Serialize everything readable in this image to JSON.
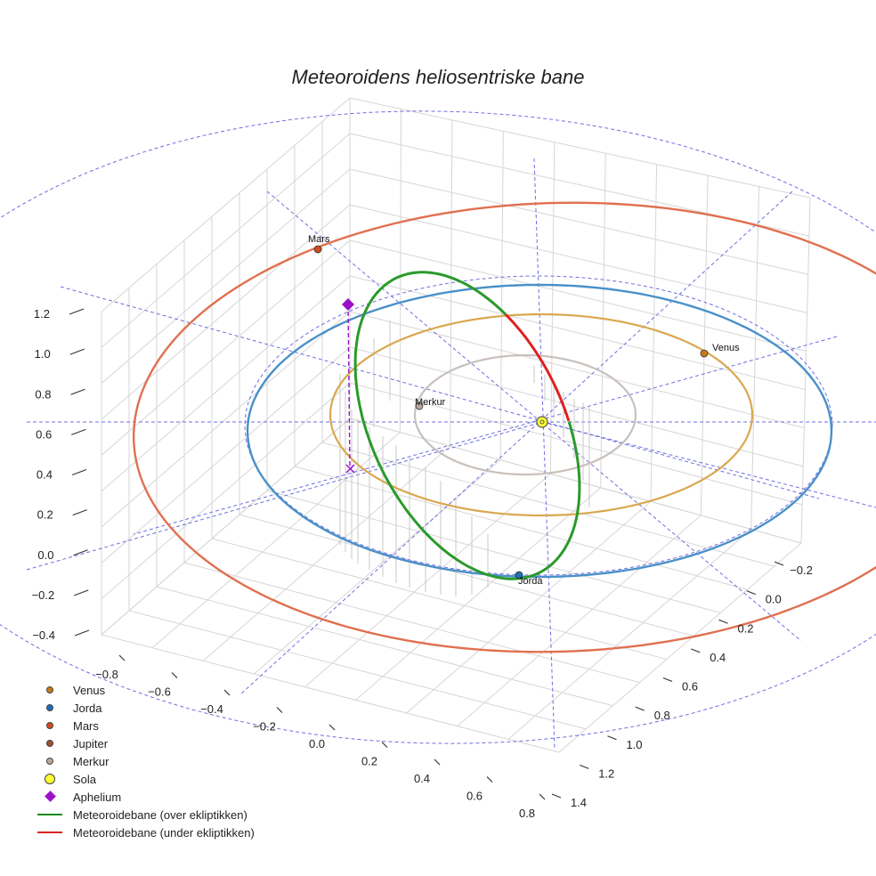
{
  "chart_data": {
    "type": "line",
    "title": "Meteoroidens heliosentriske bane",
    "x_ticks": [
      "−0.8",
      "−0.6",
      "−0.4",
      "−0.2",
      "0.0",
      "0.2",
      "0.4",
      "0.6",
      "0.8"
    ],
    "y_ticks": [
      "−0.2",
      "0.0",
      "0.2",
      "0.4",
      "0.6",
      "0.8",
      "1.0",
      "1.2",
      "1.4"
    ],
    "z_ticks": [
      "−0.4",
      "−0.2",
      "0.0",
      "0.2",
      "0.4",
      "0.6",
      "0.8",
      "1.0",
      "1.2"
    ],
    "planets": [
      {
        "name": "Venus",
        "label": "Venus",
        "color": "#c97b1c"
      },
      {
        "name": "Jorda",
        "label": "Jorda",
        "color": "#1f6fb5"
      },
      {
        "name": "Mars",
        "label": "Mars",
        "color": "#d24a1e"
      },
      {
        "name": "Merkur",
        "label": "Merkur",
        "color": "#b9a8a0"
      }
    ],
    "orbit_colors": {
      "Merkur": "#c8c0bc",
      "Venus": "#d9a850",
      "Jorda": "#4a90c8",
      "Mars": "#e07050",
      "ecliptic": "#5555dd"
    },
    "meteoroid": {
      "color_above": "#2a9a2a",
      "color_below": "#e02020",
      "aphelion_color": "#9b10c8"
    },
    "legend": [
      {
        "label": "Venus",
        "kind": "dot",
        "color": "#c97b1c"
      },
      {
        "label": "Jorda",
        "kind": "dot",
        "color": "#1f6fb5"
      },
      {
        "label": "Mars",
        "kind": "dot",
        "color": "#d24a1e"
      },
      {
        "label": "Jupiter",
        "kind": "dot",
        "color": "#a0522d"
      },
      {
        "label": "Merkur",
        "kind": "dot",
        "color": "#b9a8a0"
      },
      {
        "label": "Sola",
        "kind": "bigdot",
        "color": "#ffff33"
      },
      {
        "label": "Aphelium",
        "kind": "diamond",
        "color": "#9b10c8"
      },
      {
        "label": "Meteoroidebane (over ekliptikken)",
        "kind": "line",
        "color": "#1a8a1a"
      },
      {
        "label": "Meteoroidebane (under ekliptikken)",
        "kind": "line",
        "color": "#e02020"
      }
    ]
  }
}
